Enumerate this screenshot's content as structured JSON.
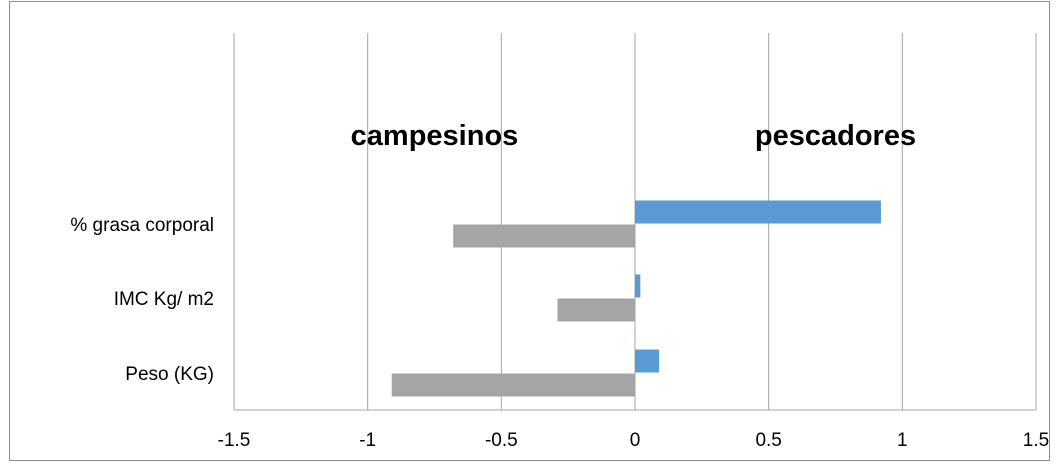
{
  "chart_data": {
    "type": "bar",
    "orientation": "horizontal",
    "categories": [
      "% grasa corporal",
      "IMC Kg/ m2",
      "Peso (KG)"
    ],
    "series": [
      {
        "values": [
          0.92,
          0.02,
          0.09
        ],
        "color": "#5B9BD5"
      },
      {
        "values": [
          -0.68,
          -0.29,
          -0.91
        ],
        "color": "#A5A5A5"
      }
    ],
    "xlim": [
      -1.5,
      1.5
    ],
    "xticks": [
      "-1.5",
      "-1",
      "-0.5",
      "0",
      "0.5",
      "1",
      "1.5"
    ],
    "grid": "vertical",
    "annotations": [
      {
        "text": "campesinos",
        "x": -0.75
      },
      {
        "text": "pescadores",
        "x": 0.75
      }
    ],
    "gridline_color": "#a6a6a6",
    "axis_color": "#a6a6a6"
  }
}
